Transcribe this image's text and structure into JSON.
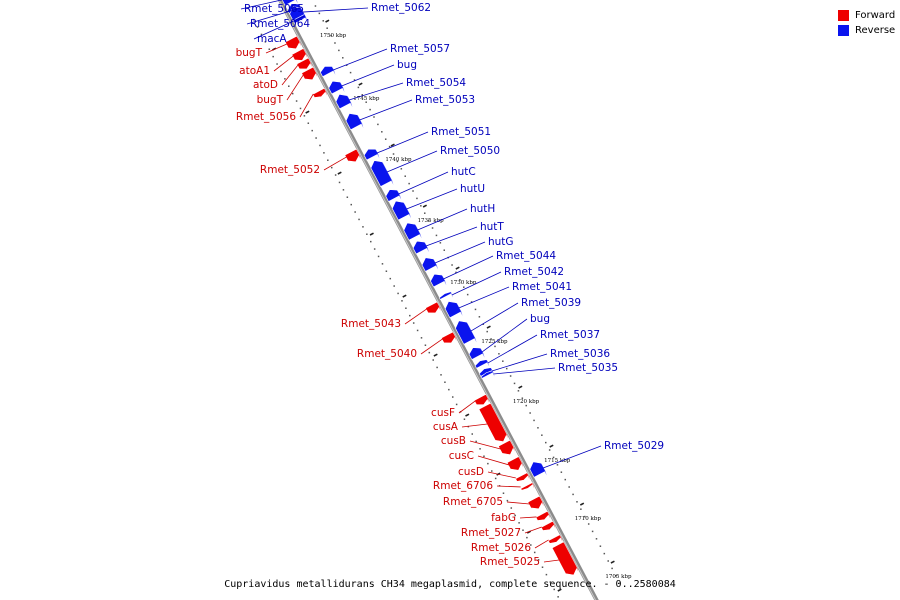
{
  "colors": {
    "forward": "#ee0000",
    "reverse": "#0a14ee",
    "forward_label": "#cc0000",
    "reverse_label": "#0000bb",
    "backbone": "#8c8c8c"
  },
  "legend": [
    {
      "label": "Forward",
      "color": "#ee0000"
    },
    {
      "label": "Reverse",
      "color": "#0a14ee"
    }
  ],
  "caption": "Cupriavidus metallidurans CH34 megaplasmid, complete sequence. - 0..2580084",
  "scale": {
    "unit": "kbp",
    "major_ticks": [
      1750,
      1745,
      1740,
      1735,
      1730,
      1725,
      1720,
      1715,
      1710,
      1705
    ]
  },
  "genes": [
    {
      "name": "Rmet_5065",
      "strand": "reverse"
    },
    {
      "name": "Rmet_5064",
      "strand": "reverse"
    },
    {
      "name": "macA",
      "strand": "reverse"
    },
    {
      "name": "Rmet_5062",
      "strand": "reverse"
    },
    {
      "name": "bugT",
      "strand": "forward"
    },
    {
      "name": "atoA1",
      "strand": "forward"
    },
    {
      "name": "atoD",
      "strand": "forward"
    },
    {
      "name": "bugT",
      "strand": "forward"
    },
    {
      "name": "Rmet_5056",
      "strand": "forward"
    },
    {
      "name": "Rmet_5057",
      "strand": "reverse"
    },
    {
      "name": "bug",
      "strand": "reverse"
    },
    {
      "name": "Rmet_5054",
      "strand": "reverse"
    },
    {
      "name": "Rmet_5053",
      "strand": "reverse"
    },
    {
      "name": "Rmet_5051",
      "strand": "reverse"
    },
    {
      "name": "Rmet_5050",
      "strand": "reverse"
    },
    {
      "name": "Rmet_5052",
      "strand": "forward"
    },
    {
      "name": "hutC",
      "strand": "reverse"
    },
    {
      "name": "hutU",
      "strand": "reverse"
    },
    {
      "name": "hutH",
      "strand": "reverse"
    },
    {
      "name": "hutT",
      "strand": "reverse"
    },
    {
      "name": "hutG",
      "strand": "reverse"
    },
    {
      "name": "Rmet_5044",
      "strand": "reverse"
    },
    {
      "name": "Rmet_5042",
      "strand": "reverse"
    },
    {
      "name": "Rmet_5041",
      "strand": "reverse"
    },
    {
      "name": "Rmet_5039",
      "strand": "reverse"
    },
    {
      "name": "Rmet_5043",
      "strand": "forward"
    },
    {
      "name": "bug",
      "strand": "reverse"
    },
    {
      "name": "Rmet_5037",
      "strand": "reverse"
    },
    {
      "name": "Rmet_5040",
      "strand": "forward"
    },
    {
      "name": "Rmet_5036",
      "strand": "reverse"
    },
    {
      "name": "Rmet_5035",
      "strand": "reverse"
    },
    {
      "name": "cusF",
      "strand": "forward"
    },
    {
      "name": "cusA",
      "strand": "forward"
    },
    {
      "name": "cusB",
      "strand": "forward"
    },
    {
      "name": "cusC",
      "strand": "forward"
    },
    {
      "name": "cusD",
      "strand": "forward"
    },
    {
      "name": "Rmet_5029",
      "strand": "reverse"
    },
    {
      "name": "Rmet_6706",
      "strand": "forward"
    },
    {
      "name": "Rmet_6705",
      "strand": "forward"
    },
    {
      "name": "fabG",
      "strand": "forward"
    },
    {
      "name": "Rmet_5027",
      "strand": "forward"
    },
    {
      "name": "Rmet_5026",
      "strand": "forward"
    },
    {
      "name": "Rmet_5025",
      "strand": "forward"
    }
  ]
}
